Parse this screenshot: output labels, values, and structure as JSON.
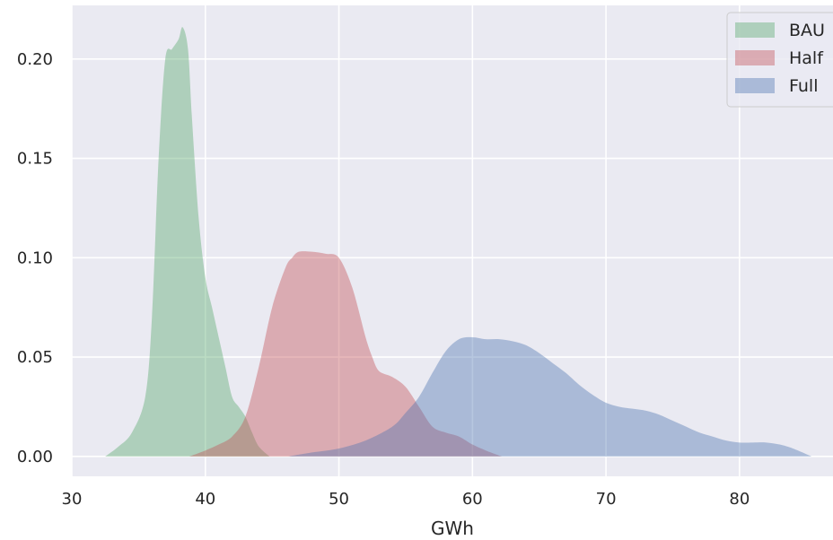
{
  "chart_data": {
    "type": "area",
    "xlabel": "GWh",
    "ylabel": "",
    "xlim": [
      30,
      87
    ],
    "ylim": [
      -0.01,
      0.227
    ],
    "x_ticks": [
      30,
      40,
      50,
      60,
      70,
      80
    ],
    "y_ticks": [
      0.0,
      0.05,
      0.1,
      0.15,
      0.2
    ],
    "x_tick_labels": [
      "30",
      "40",
      "50",
      "60",
      "70",
      "80"
    ],
    "y_tick_labels": [
      "0.00",
      "0.05",
      "0.10",
      "0.15",
      "0.20"
    ],
    "grid": true,
    "legend_position": "top-right",
    "colors": {
      "background": "#eaeaf2",
      "grid": "#ffffff",
      "BAU": "#55a868",
      "Half": "#c44e52",
      "Full": "#4c72b0"
    },
    "series": [
      {
        "name": "BAU",
        "x": [
          32.5,
          33.5,
          34.5,
          35.5,
          36.0,
          36.5,
          37.0,
          37.5,
          38.0,
          38.3,
          38.7,
          39.0,
          39.5,
          40.0,
          40.5,
          41.0,
          41.5,
          42.0,
          42.5,
          43.0,
          43.5,
          44.0,
          44.8
        ],
        "y": [
          0.0,
          0.005,
          0.012,
          0.03,
          0.07,
          0.15,
          0.2,
          0.205,
          0.21,
          0.216,
          0.205,
          0.17,
          0.12,
          0.09,
          0.075,
          0.06,
          0.045,
          0.03,
          0.025,
          0.02,
          0.012,
          0.005,
          0.0
        ]
      },
      {
        "name": "Half",
        "x": [
          38.8,
          40.0,
          41.0,
          42.0,
          43.0,
          44.0,
          45.0,
          46.0,
          46.5,
          47.0,
          48.0,
          49.0,
          50.0,
          51.0,
          52.0,
          52.5,
          53.0,
          54.0,
          55.0,
          56.0,
          57.0,
          58.0,
          59.0,
          60.0,
          61.0,
          62.2
        ],
        "y": [
          0.0,
          0.003,
          0.006,
          0.01,
          0.02,
          0.045,
          0.075,
          0.095,
          0.1,
          0.103,
          0.103,
          0.102,
          0.1,
          0.085,
          0.06,
          0.05,
          0.043,
          0.04,
          0.035,
          0.025,
          0.015,
          0.012,
          0.01,
          0.006,
          0.003,
          0.0
        ]
      },
      {
        "name": "Full",
        "x": [
          46.2,
          48.0,
          50.0,
          52.0,
          54.0,
          55.0,
          56.0,
          57.0,
          58.0,
          59.0,
          60.0,
          61.0,
          62.0,
          63.0,
          64.0,
          65.0,
          66.0,
          67.0,
          68.0,
          69.0,
          70.0,
          71.0,
          72.0,
          73.0,
          74.0,
          75.0,
          76.0,
          77.0,
          78.0,
          79.0,
          80.0,
          81.0,
          82.0,
          83.0,
          84.0,
          85.4
        ],
        "y": [
          0.0,
          0.002,
          0.004,
          0.008,
          0.015,
          0.022,
          0.03,
          0.042,
          0.053,
          0.059,
          0.06,
          0.059,
          0.059,
          0.058,
          0.056,
          0.052,
          0.047,
          0.042,
          0.036,
          0.031,
          0.027,
          0.025,
          0.024,
          0.023,
          0.021,
          0.018,
          0.015,
          0.012,
          0.01,
          0.008,
          0.007,
          0.007,
          0.007,
          0.006,
          0.004,
          0.0
        ]
      }
    ]
  }
}
